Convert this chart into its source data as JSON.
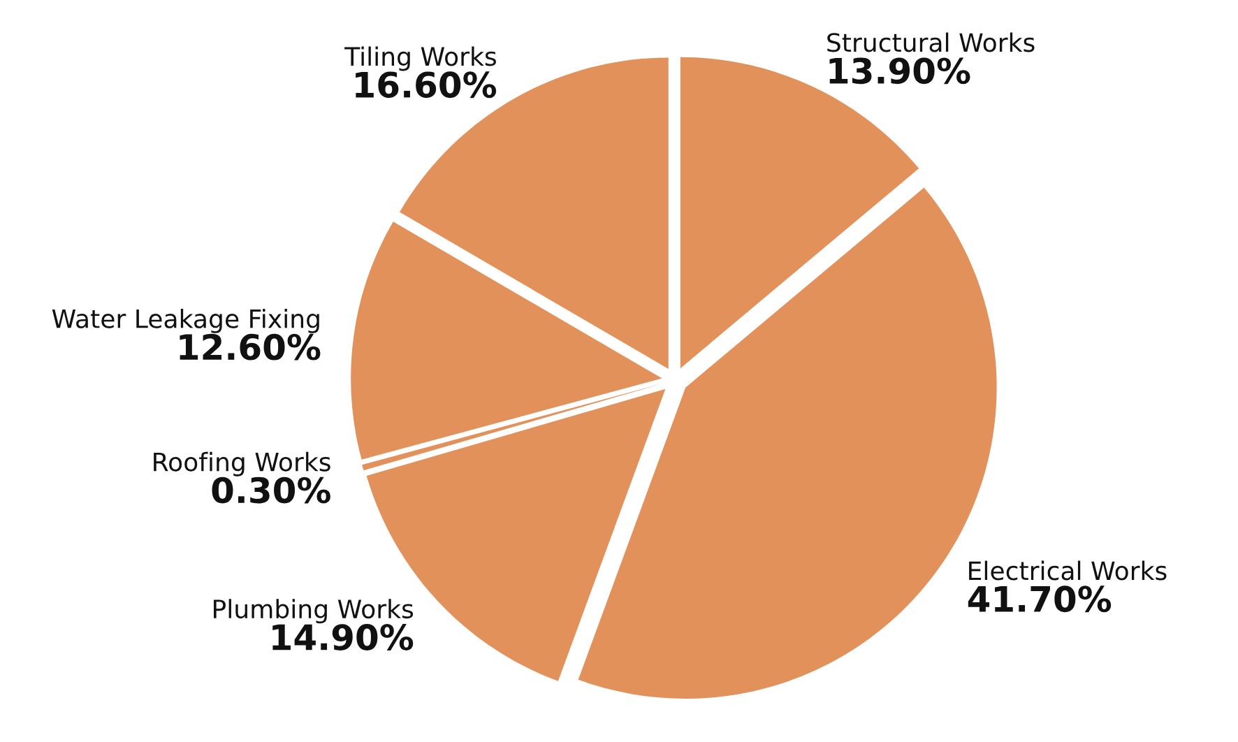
{
  "chart_data": {
    "type": "pie",
    "categories": [
      "Structural Works",
      "Electrical Works",
      "Plumbing Works",
      "Roofing Works",
      "Water Leakage Fixing",
      "Tiling Works"
    ],
    "values": [
      13.9,
      41.7,
      14.9,
      0.3,
      12.6,
      16.6
    ],
    "value_labels": [
      "13.90%",
      "41.70%",
      "14.90%",
      "0.30%",
      "12.60%",
      "16.60%"
    ],
    "colors": [
      "#e2915a",
      "#e2915a",
      "#e2915a",
      "#e2915a",
      "#e2915a",
      "#e2915a"
    ]
  }
}
